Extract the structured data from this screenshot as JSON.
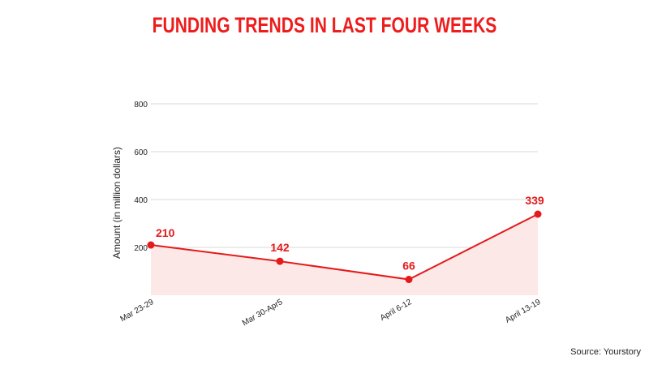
{
  "chart_data": {
    "type": "area",
    "title": "FUNDING TRENDS IN LAST FOUR WEEKS",
    "categories": [
      "Mar 23-29",
      "Mar 30-Apr5",
      "April 6-12",
      "April 13-19"
    ],
    "series": [
      {
        "values": [
          210,
          142,
          66,
          339
        ]
      }
    ],
    "data_labels": [
      "210",
      "142",
      "66",
      "339"
    ],
    "xlabel": "",
    "ylabel": "Amount (in million dollars)",
    "ylim": [
      0,
      800
    ],
    "yticks": [
      200,
      400,
      600,
      800
    ],
    "grid": true,
    "colors": {
      "line": "#e31b1b",
      "fill": "#fde8e8",
      "title": "#ee1c1c",
      "grid": "#d9d9d9"
    }
  },
  "source": "Source: Yourstory"
}
